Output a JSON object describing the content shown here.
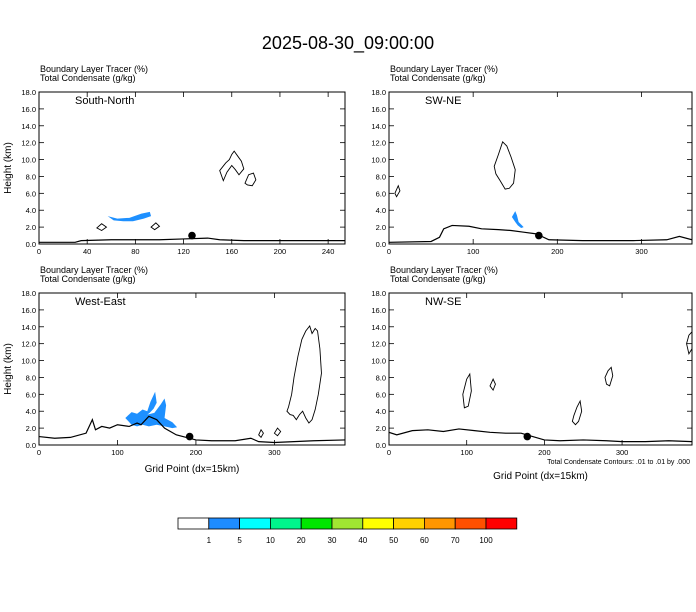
{
  "title": "2025-08-30_09:00:00",
  "colors": {
    "terrain": "#000000",
    "tracer": "#1e90ff",
    "condensate": "#000000",
    "site_marker": "#000000"
  },
  "chart_data": [
    {
      "type": "line",
      "panel_label": "South-North",
      "header_line1": "Boundary Layer Tracer   (%)",
      "header_line2": "Total Condensate   (g/kg)",
      "ylabel": "Height (km)",
      "xlabel": "",
      "xlim": [
        0,
        254
      ],
      "ylim": [
        0,
        18
      ],
      "xticks": [
        0,
        40,
        80,
        120,
        160,
        200,
        240
      ],
      "yticks": [
        0,
        2,
        4,
        6,
        8,
        10,
        12,
        14,
        16,
        18
      ],
      "ytick_labels": [
        "0.0",
        "2.0",
        "4.0",
        "6.0",
        "8.0",
        "10.0",
        "12.0",
        "14.0",
        "16.0",
        "18.0"
      ],
      "terrain": {
        "x": [
          0,
          30,
          35,
          60,
          80,
          100,
          120,
          140,
          150,
          170,
          254
        ],
        "y": [
          0.2,
          0.2,
          0.4,
          0.5,
          0.5,
          0.5,
          0.6,
          0.7,
          0.5,
          0.4,
          0.4
        ]
      },
      "tracer_polygons": [
        {
          "x": [
            57,
            65,
            75,
            85,
            92,
            93,
            87,
            78,
            70,
            62,
            57
          ],
          "y": [
            3.3,
            3.0,
            3.1,
            3.6,
            3.8,
            3.3,
            3.0,
            2.7,
            2.7,
            2.8,
            3.3
          ]
        }
      ],
      "condensate_polygons": [
        {
          "x": [
            48,
            52,
            56,
            52,
            48
          ],
          "y": [
            1.9,
            2.4,
            2.0,
            1.6,
            1.9
          ]
        },
        {
          "x": [
            150,
            155,
            158,
            160,
            162,
            165,
            168,
            170,
            166,
            163,
            160,
            156,
            153,
            150
          ],
          "y": [
            8.7,
            9.6,
            10.0,
            10.6,
            11.0,
            10.4,
            9.8,
            8.9,
            8.2,
            8.8,
            9.3,
            8.5,
            7.5,
            8.7
          ]
        },
        {
          "x": [
            171,
            174,
            178,
            180,
            177,
            173,
            171
          ],
          "y": [
            7.2,
            8.2,
            8.4,
            7.6,
            6.9,
            7.0,
            7.2
          ]
        },
        {
          "x": [
            93,
            97,
            100,
            96,
            93
          ],
          "y": [
            2.0,
            2.5,
            2.1,
            1.7,
            2.0
          ]
        }
      ],
      "site": {
        "x": 127,
        "y": 1.0
      }
    },
    {
      "type": "line",
      "panel_label": "SW-NE",
      "header_line1": "Boundary Layer Tracer   (%)",
      "header_line2": "Total Condensate   (g/kg)",
      "ylabel": "",
      "xlabel": "",
      "xlim": [
        0,
        360
      ],
      "ylim": [
        0,
        18
      ],
      "xticks": [
        0,
        100,
        200,
        300
      ],
      "yticks": [
        0,
        2,
        4,
        6,
        8,
        10,
        12,
        14,
        16,
        18
      ],
      "ytick_labels": [
        "0.0",
        "2.0",
        "4.0",
        "6.0",
        "8.0",
        "10.0",
        "12.0",
        "14.0",
        "16.0",
        "18.0"
      ],
      "terrain": {
        "x": [
          0,
          50,
          60,
          65,
          75,
          95,
          110,
          130,
          145,
          160,
          175,
          190,
          230,
          290,
          330,
          345,
          360
        ],
        "y": [
          0.2,
          0.3,
          0.8,
          1.8,
          2.2,
          2.1,
          1.8,
          1.7,
          1.6,
          1.4,
          1.2,
          0.5,
          0.4,
          0.4,
          0.5,
          0.9,
          0.5
        ]
      },
      "tracer_polygons": [
        {
          "x": [
            146,
            150,
            152,
            154,
            158,
            160,
            157,
            153,
            150,
            146
          ],
          "y": [
            3.2,
            3.9,
            3.4,
            2.6,
            2.2,
            2.0,
            1.9,
            2.2,
            2.6,
            3.2
          ]
        }
      ],
      "condensate_polygons": [
        {
          "x": [
            125,
            130,
            135,
            140,
            145,
            150,
            148,
            143,
            138,
            132,
            127,
            125
          ],
          "y": [
            9.2,
            10.6,
            12.1,
            11.6,
            10.3,
            8.8,
            7.2,
            6.6,
            6.5,
            7.5,
            8.3,
            9.2
          ]
        },
        {
          "x": [
            7,
            11,
            13,
            9,
            7
          ],
          "y": [
            6.0,
            6.9,
            6.3,
            5.6,
            6.0
          ]
        }
      ],
      "site": {
        "x": 178,
        "y": 1.0
      }
    },
    {
      "type": "line",
      "panel_label": "West-East",
      "header_line1": "Boundary Layer Tracer   (%)",
      "header_line2": "Total Condensate   (g/kg)",
      "ylabel": "Height (km)",
      "xlabel": "Grid Point (dx=15km)",
      "xlim": [
        0,
        390
      ],
      "ylim": [
        0,
        18
      ],
      "xticks": [
        0,
        100,
        200,
        300
      ],
      "yticks": [
        0,
        2,
        4,
        6,
        8,
        10,
        12,
        14,
        16,
        18
      ],
      "ytick_labels": [
        "0.0",
        "2.0",
        "4.0",
        "6.0",
        "8.0",
        "10.0",
        "12.0",
        "14.0",
        "16.0",
        "18.0"
      ],
      "terrain": {
        "x": [
          0,
          20,
          40,
          60,
          68,
          72,
          80,
          90,
          100,
          115,
          125,
          130,
          140,
          150,
          160,
          175,
          200,
          220,
          250,
          270,
          280,
          300,
          350,
          390
        ],
        "y": [
          1.0,
          0.8,
          0.9,
          1.4,
          3.0,
          1.8,
          2.2,
          2.0,
          2.4,
          2.2,
          2.6,
          2.4,
          3.4,
          3.0,
          2.0,
          1.2,
          0.6,
          0.5,
          0.5,
          0.8,
          0.4,
          0.3,
          0.5,
          0.6
        ]
      },
      "tracer_polygons": [
        {
          "x": [
            110,
            118,
            125,
            132,
            138,
            142,
            148,
            150,
            146,
            141,
            138,
            147,
            155,
            160,
            162,
            160,
            170,
            176,
            170,
            160,
            150,
            140,
            132,
            125,
            118,
            110
          ],
          "y": [
            3.2,
            3.9,
            3.7,
            4.2,
            4.0,
            5.1,
            6.3,
            5.0,
            4.3,
            3.8,
            3.6,
            3.8,
            4.8,
            5.5,
            4.7,
            3.2,
            2.7,
            2.1,
            2.0,
            2.2,
            2.4,
            2.2,
            2.4,
            2.2,
            2.4,
            3.2
          ]
        }
      ],
      "condensate_polygons": [
        {
          "x": [
            318,
            322,
            325,
            330,
            335,
            340,
            345,
            348,
            352,
            355,
            358,
            360,
            356,
            352,
            348,
            344,
            340,
            336,
            332,
            328,
            324,
            320,
            316,
            318
          ],
          "y": [
            4.5,
            6.0,
            8.0,
            10.5,
            12.5,
            13.5,
            14.1,
            13.2,
            13.8,
            13.5,
            11.4,
            8.5,
            6.0,
            4.2,
            3.0,
            2.6,
            3.2,
            4.0,
            3.6,
            3.0,
            3.5,
            3.6,
            4.0,
            4.5
          ]
        },
        {
          "x": [
            280,
            283,
            286,
            283,
            280
          ],
          "y": [
            1.2,
            1.8,
            1.4,
            0.9,
            1.2
          ]
        },
        {
          "x": [
            300,
            304,
            308,
            304,
            300
          ],
          "y": [
            1.4,
            2.0,
            1.6,
            1.1,
            1.4
          ]
        }
      ],
      "site": {
        "x": 192,
        "y": 1.0
      }
    },
    {
      "type": "line",
      "panel_label": "NW-SE",
      "header_line1": "Boundary Layer Tracer   (%)",
      "header_line2": "Total Condensate   (g/kg)",
      "ylabel": "",
      "xlabel": "Grid Point (dx=15km)",
      "note": "Total Condensate Contours: .01 to .01 by .000",
      "xlim": [
        0,
        390
      ],
      "ylim": [
        0,
        18
      ],
      "xticks": [
        0,
        100,
        200,
        300
      ],
      "yticks": [
        0,
        2,
        4,
        6,
        8,
        10,
        12,
        14,
        16,
        18
      ],
      "ytick_labels": [
        "0.0",
        "2.0",
        "4.0",
        "6.0",
        "8.0",
        "10.0",
        "12.0",
        "14.0",
        "16.0",
        "18.0"
      ],
      "terrain": {
        "x": [
          0,
          10,
          30,
          50,
          70,
          90,
          110,
          130,
          150,
          170,
          185,
          200,
          220,
          250,
          280,
          300,
          330,
          360,
          390
        ],
        "y": [
          1.5,
          1.2,
          1.7,
          1.8,
          1.6,
          1.9,
          1.7,
          1.5,
          1.4,
          1.4,
          1.0,
          0.6,
          0.5,
          0.6,
          0.5,
          0.4,
          0.4,
          0.5,
          0.4
        ]
      },
      "tracer_polygons": [],
      "condensate_polygons": [
        {
          "x": [
            95,
            100,
            104,
            106,
            102,
            97,
            95
          ],
          "y": [
            6.0,
            7.8,
            8.4,
            6.4,
            4.6,
            4.4,
            6.0
          ]
        },
        {
          "x": [
            238,
            242,
            246,
            248,
            244,
            240,
            236,
            238
          ],
          "y": [
            3.5,
            4.5,
            5.2,
            4.0,
            2.8,
            2.4,
            2.8,
            3.5
          ]
        },
        {
          "x": [
            278,
            282,
            286,
            288,
            284,
            280,
            278
          ],
          "y": [
            8.0,
            8.8,
            9.2,
            8.2,
            7.0,
            7.2,
            8.0
          ]
        },
        {
          "x": [
            383,
            386,
            390,
            390,
            386,
            383
          ],
          "y": [
            12.0,
            13.0,
            13.4,
            11.4,
            10.8,
            12.0
          ]
        },
        {
          "x": [
            130,
            134,
            137,
            134,
            130
          ],
          "y": [
            7.0,
            7.8,
            7.2,
            6.5,
            7.0
          ]
        }
      ],
      "site": {
        "x": 178,
        "y": 1.0
      }
    }
  ],
  "colorbar": {
    "colors": [
      "#ffffff",
      "#1e8cff",
      "#00ffff",
      "#00f58c",
      "#00e600",
      "#a0e632",
      "#ffff00",
      "#ffd200",
      "#ff9600",
      "#ff5000",
      "#ff0000"
    ],
    "labels": [
      "1",
      "5",
      "10",
      "20",
      "30",
      "40",
      "50",
      "60",
      "70",
      "100"
    ]
  }
}
